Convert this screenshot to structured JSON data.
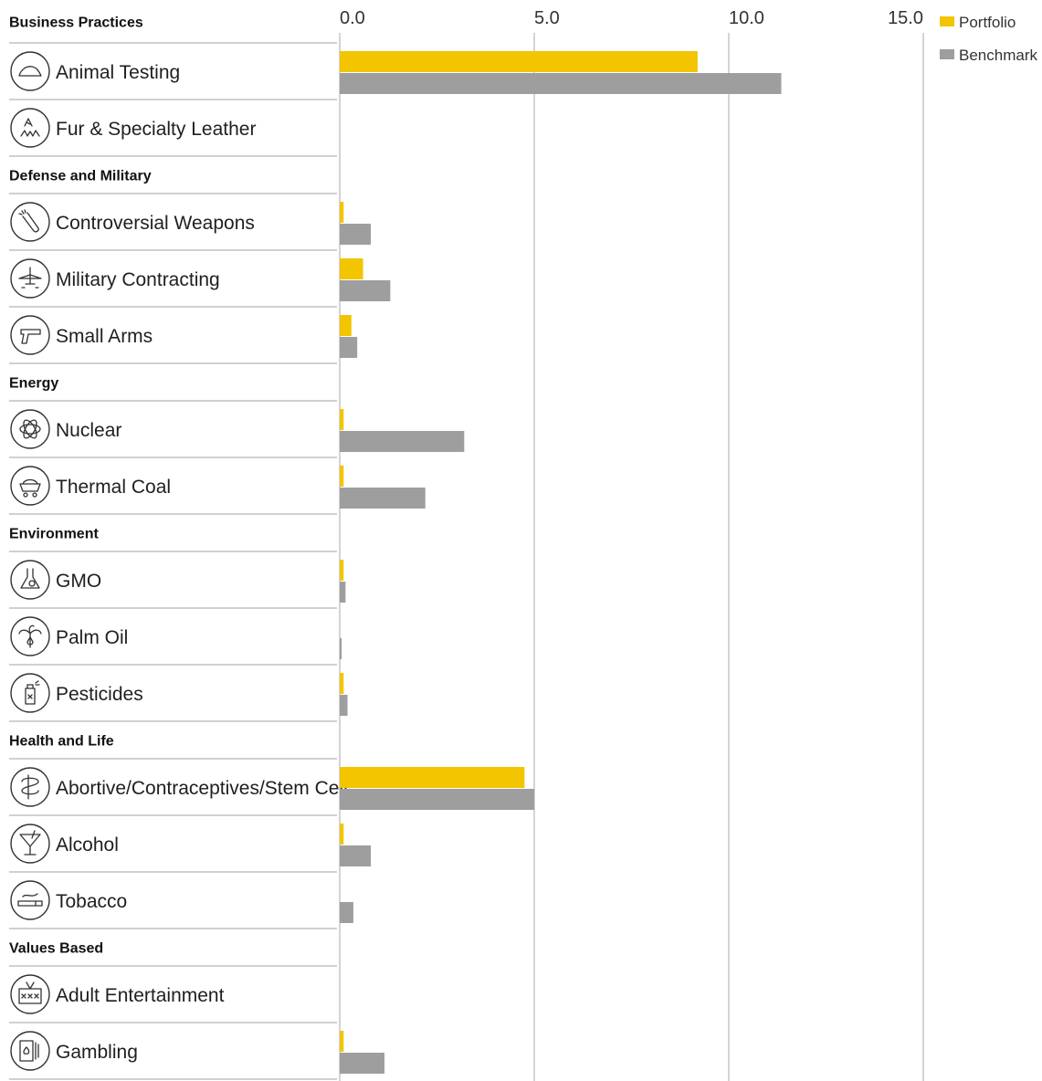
{
  "chart_data": {
    "type": "bar",
    "orientation": "horizontal",
    "x_ticks": [
      "0.0",
      "5.0",
      "10.0",
      "15.0"
    ],
    "xlim": [
      0,
      15
    ],
    "grid": true,
    "legend_position": "top-right",
    "colors": {
      "Portfolio": "#f2c500",
      "Benchmark": "#9e9e9e",
      "grid": "#d4d4d4",
      "divider": "#d0d0d0"
    },
    "series": [
      {
        "name": "Portfolio",
        "color": "#f2c500"
      },
      {
        "name": "Benchmark",
        "color": "#9e9e9e"
      }
    ],
    "groups": [
      {
        "name": "Business Practices",
        "items": [
          {
            "label": "Animal Testing",
            "icon": "mouse-icon",
            "portfolio": 9.2,
            "benchmark": 11.35
          },
          {
            "label": "Fur & Specialty Leather",
            "icon": "fur-icon",
            "portfolio": 0,
            "benchmark": 0
          }
        ]
      },
      {
        "name": "Defense and Military",
        "items": [
          {
            "label": "Controversial Weapons",
            "icon": "missile-icon",
            "portfolio": 0.1,
            "benchmark": 0.8
          },
          {
            "label": "Military Contracting",
            "icon": "fighter-jet-icon",
            "portfolio": 0.6,
            "benchmark": 1.3
          },
          {
            "label": "Small Arms",
            "icon": "handgun-icon",
            "portfolio": 0.3,
            "benchmark": 0.45
          }
        ]
      },
      {
        "name": "Energy",
        "items": [
          {
            "label": "Nuclear",
            "icon": "atom-icon",
            "portfolio": 0.1,
            "benchmark": 3.2
          },
          {
            "label": "Thermal Coal",
            "icon": "coal-cart-icon",
            "portfolio": 0.1,
            "benchmark": 2.2
          }
        ]
      },
      {
        "name": "Environment",
        "items": [
          {
            "label": "GMO",
            "icon": "flask-icon",
            "portfolio": 0.1,
            "benchmark": 0.15
          },
          {
            "label": "Palm Oil",
            "icon": "palm-tree-icon",
            "portfolio": 0,
            "benchmark": 0.05
          },
          {
            "label": "Pesticides",
            "icon": "spray-can-icon",
            "portfolio": 0.1,
            "benchmark": 0.2
          }
        ]
      },
      {
        "name": "Health and Life",
        "items": [
          {
            "label": "Abortive/Contraceptives/Stem Cell",
            "icon": "pill-icon",
            "portfolio": 4.75,
            "benchmark": 5.0
          },
          {
            "label": "Alcohol",
            "icon": "cocktail-icon",
            "portfolio": 0.1,
            "benchmark": 0.8
          },
          {
            "label": "Tobacco",
            "icon": "cigarette-icon",
            "portfolio": 0,
            "benchmark": 0.35
          }
        ]
      },
      {
        "name": "Values Based",
        "items": [
          {
            "label": "Adult Entertainment",
            "icon": "xxx-tv-icon",
            "portfolio": 0,
            "benchmark": 0
          },
          {
            "label": "Gambling",
            "icon": "playing-cards-icon",
            "portfolio": 0.1,
            "benchmark": 1.15
          }
        ]
      }
    ]
  }
}
